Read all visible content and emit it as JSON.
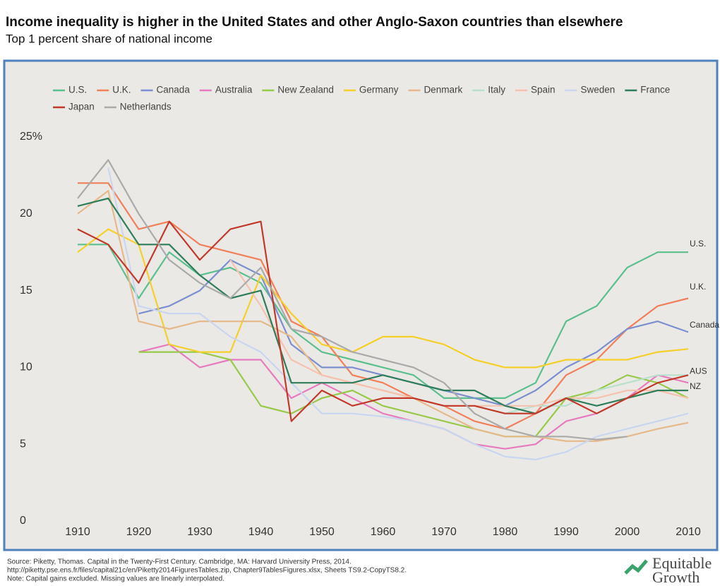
{
  "chart_data": {
    "type": "line",
    "title": "Income inequality is higher in the United States and other Anglo-Saxon countries than elsewhere",
    "subtitle": "Top 1 percent share of national income",
    "x": [
      1910,
      1915,
      1920,
      1925,
      1930,
      1935,
      1940,
      1945,
      1950,
      1955,
      1960,
      1965,
      1970,
      1975,
      1980,
      1985,
      1990,
      1995,
      2000,
      2005,
      2010
    ],
    "xlim": [
      1910,
      2010
    ],
    "xticks": [
      1910,
      1920,
      1930,
      1940,
      1950,
      1960,
      1970,
      1980,
      1990,
      2000,
      2010
    ],
    "ylim": [
      0,
      25
    ],
    "yticks": [
      0,
      5,
      10,
      15,
      20,
      {
        "value": 25,
        "label": "25%"
      }
    ],
    "grid": false,
    "series": [
      {
        "name": "U.S.",
        "color": "#5bbf8e",
        "values": [
          18,
          18,
          14.5,
          17.5,
          16,
          16.5,
          15.5,
          12.5,
          11,
          10.5,
          10,
          9.5,
          8,
          8,
          8,
          9,
          13,
          14,
          16.5,
          17.5,
          17.5
        ]
      },
      {
        "name": "U.K.",
        "color": "#f07f5a",
        "values": [
          22,
          22,
          19,
          19.5,
          18,
          17.5,
          17,
          13,
          12,
          9.5,
          9,
          8,
          7.5,
          6.5,
          6,
          7,
          9.5,
          10.5,
          12.5,
          14,
          14.5
        ]
      },
      {
        "name": "Canada",
        "color": "#7b8fd0",
        "values": [
          null,
          null,
          13.5,
          14,
          15,
          17,
          16,
          11.5,
          10,
          10,
          9.5,
          9,
          8.5,
          8,
          7.5,
          8.5,
          10,
          11,
          12.5,
          13,
          12.3
        ]
      },
      {
        "name": "Australia",
        "color": "#e67bbd",
        "values": [
          null,
          null,
          11,
          11.5,
          10,
          10.5,
          10.5,
          8,
          9,
          8,
          7,
          6.5,
          6,
          5,
          4.7,
          5,
          6.5,
          7,
          8,
          9.5,
          9
        ]
      },
      {
        "name": "New Zealand",
        "color": "#98c94a",
        "values": [
          null,
          null,
          11,
          11,
          11,
          10.5,
          7.5,
          7,
          8,
          8.5,
          7.5,
          7,
          6.5,
          6,
          5.5,
          5.5,
          8,
          8.5,
          9.5,
          9,
          8
        ]
      },
      {
        "name": "Germany",
        "color": "#f5d02a",
        "values": [
          17.5,
          19,
          18,
          11.5,
          11,
          11,
          16,
          13.5,
          11.5,
          11,
          12,
          12,
          11.5,
          10.5,
          10,
          10,
          10.5,
          10.5,
          10.5,
          11,
          11.2
        ]
      },
      {
        "name": "Denmark",
        "color": "#e6b98a",
        "values": [
          20,
          21.5,
          13,
          12.5,
          13,
          13,
          13,
          12,
          9.5,
          9,
          8.5,
          8,
          7,
          6,
          5.5,
          5.5,
          5.2,
          5.2,
          5.5,
          6,
          6.4
        ]
      },
      {
        "name": "Italy",
        "color": "#b8e0cc",
        "values": [
          null,
          null,
          null,
          null,
          null,
          null,
          null,
          null,
          null,
          null,
          null,
          null,
          null,
          7.5,
          7,
          7.5,
          7.5,
          8.5,
          9,
          9.5,
          9.5
        ]
      },
      {
        "name": "Spain",
        "color": "#f6c2b0",
        "values": [
          null,
          null,
          null,
          null,
          null,
          17,
          14,
          10.5,
          9.5,
          9,
          8.5,
          8,
          7.5,
          7.5,
          7.5,
          7.5,
          8,
          8,
          8.5,
          8.5,
          8
        ]
      },
      {
        "name": "Sweden",
        "color": "#c9d6ef",
        "values": [
          null,
          23,
          14,
          13.5,
          13.5,
          12,
          11,
          9,
          7,
          7,
          6.8,
          6.5,
          6,
          5,
          4.2,
          4,
          4.5,
          5.5,
          6,
          6.5,
          7
        ]
      },
      {
        "name": "France",
        "color": "#2e7d5b",
        "values": [
          20.5,
          21,
          18,
          18,
          16,
          14.5,
          15,
          9,
          9,
          9,
          9.5,
          9,
          8.5,
          8.5,
          7.5,
          7,
          8,
          7.5,
          8,
          8.5,
          8.5
        ]
      },
      {
        "name": "Japan",
        "color": "#c0392b",
        "values": [
          19,
          18,
          15.5,
          19.5,
          17,
          19,
          19.5,
          6.5,
          8.5,
          7.5,
          8,
          8,
          7.5,
          7.5,
          7,
          7,
          8,
          7,
          8,
          9,
          9.5
        ]
      },
      {
        "name": "Netherlands",
        "color": "#aaaaaa",
        "values": [
          21,
          23.5,
          20,
          17,
          15.5,
          14.5,
          16.5,
          12.5,
          12,
          11,
          10.5,
          10,
          9,
          7,
          6,
          5.5,
          5.5,
          5.3,
          5.5,
          null,
          null
        ]
      }
    ],
    "annotations": [
      {
        "text": "U.S.",
        "x": 2010,
        "y": 17.8
      },
      {
        "text": "U.K.",
        "x": 2010,
        "y": 15
      },
      {
        "text": "Canada",
        "x": 2010,
        "y": 12.5
      },
      {
        "text": "AUS",
        "x": 2010,
        "y": 9.5
      },
      {
        "text": "NZ",
        "x": 2010,
        "y": 8.5
      }
    ],
    "notes": [
      "Source: Piketty, Thomas. Capital in the Twenty-First Century. Cambridge, MA: Harvard University Press, 2014.",
      "http://piketty.pse.ens.fr/files/capital21c/en/Piketty2014FiguresTables.zip, Chapter9TablesFigures.xlsx, Sheets TS9.2-CopyTS8.2.",
      "Note: Capital gains excluded. Missing values are linearly interpolated."
    ],
    "logo": [
      "Equitable",
      "Growth"
    ]
  }
}
